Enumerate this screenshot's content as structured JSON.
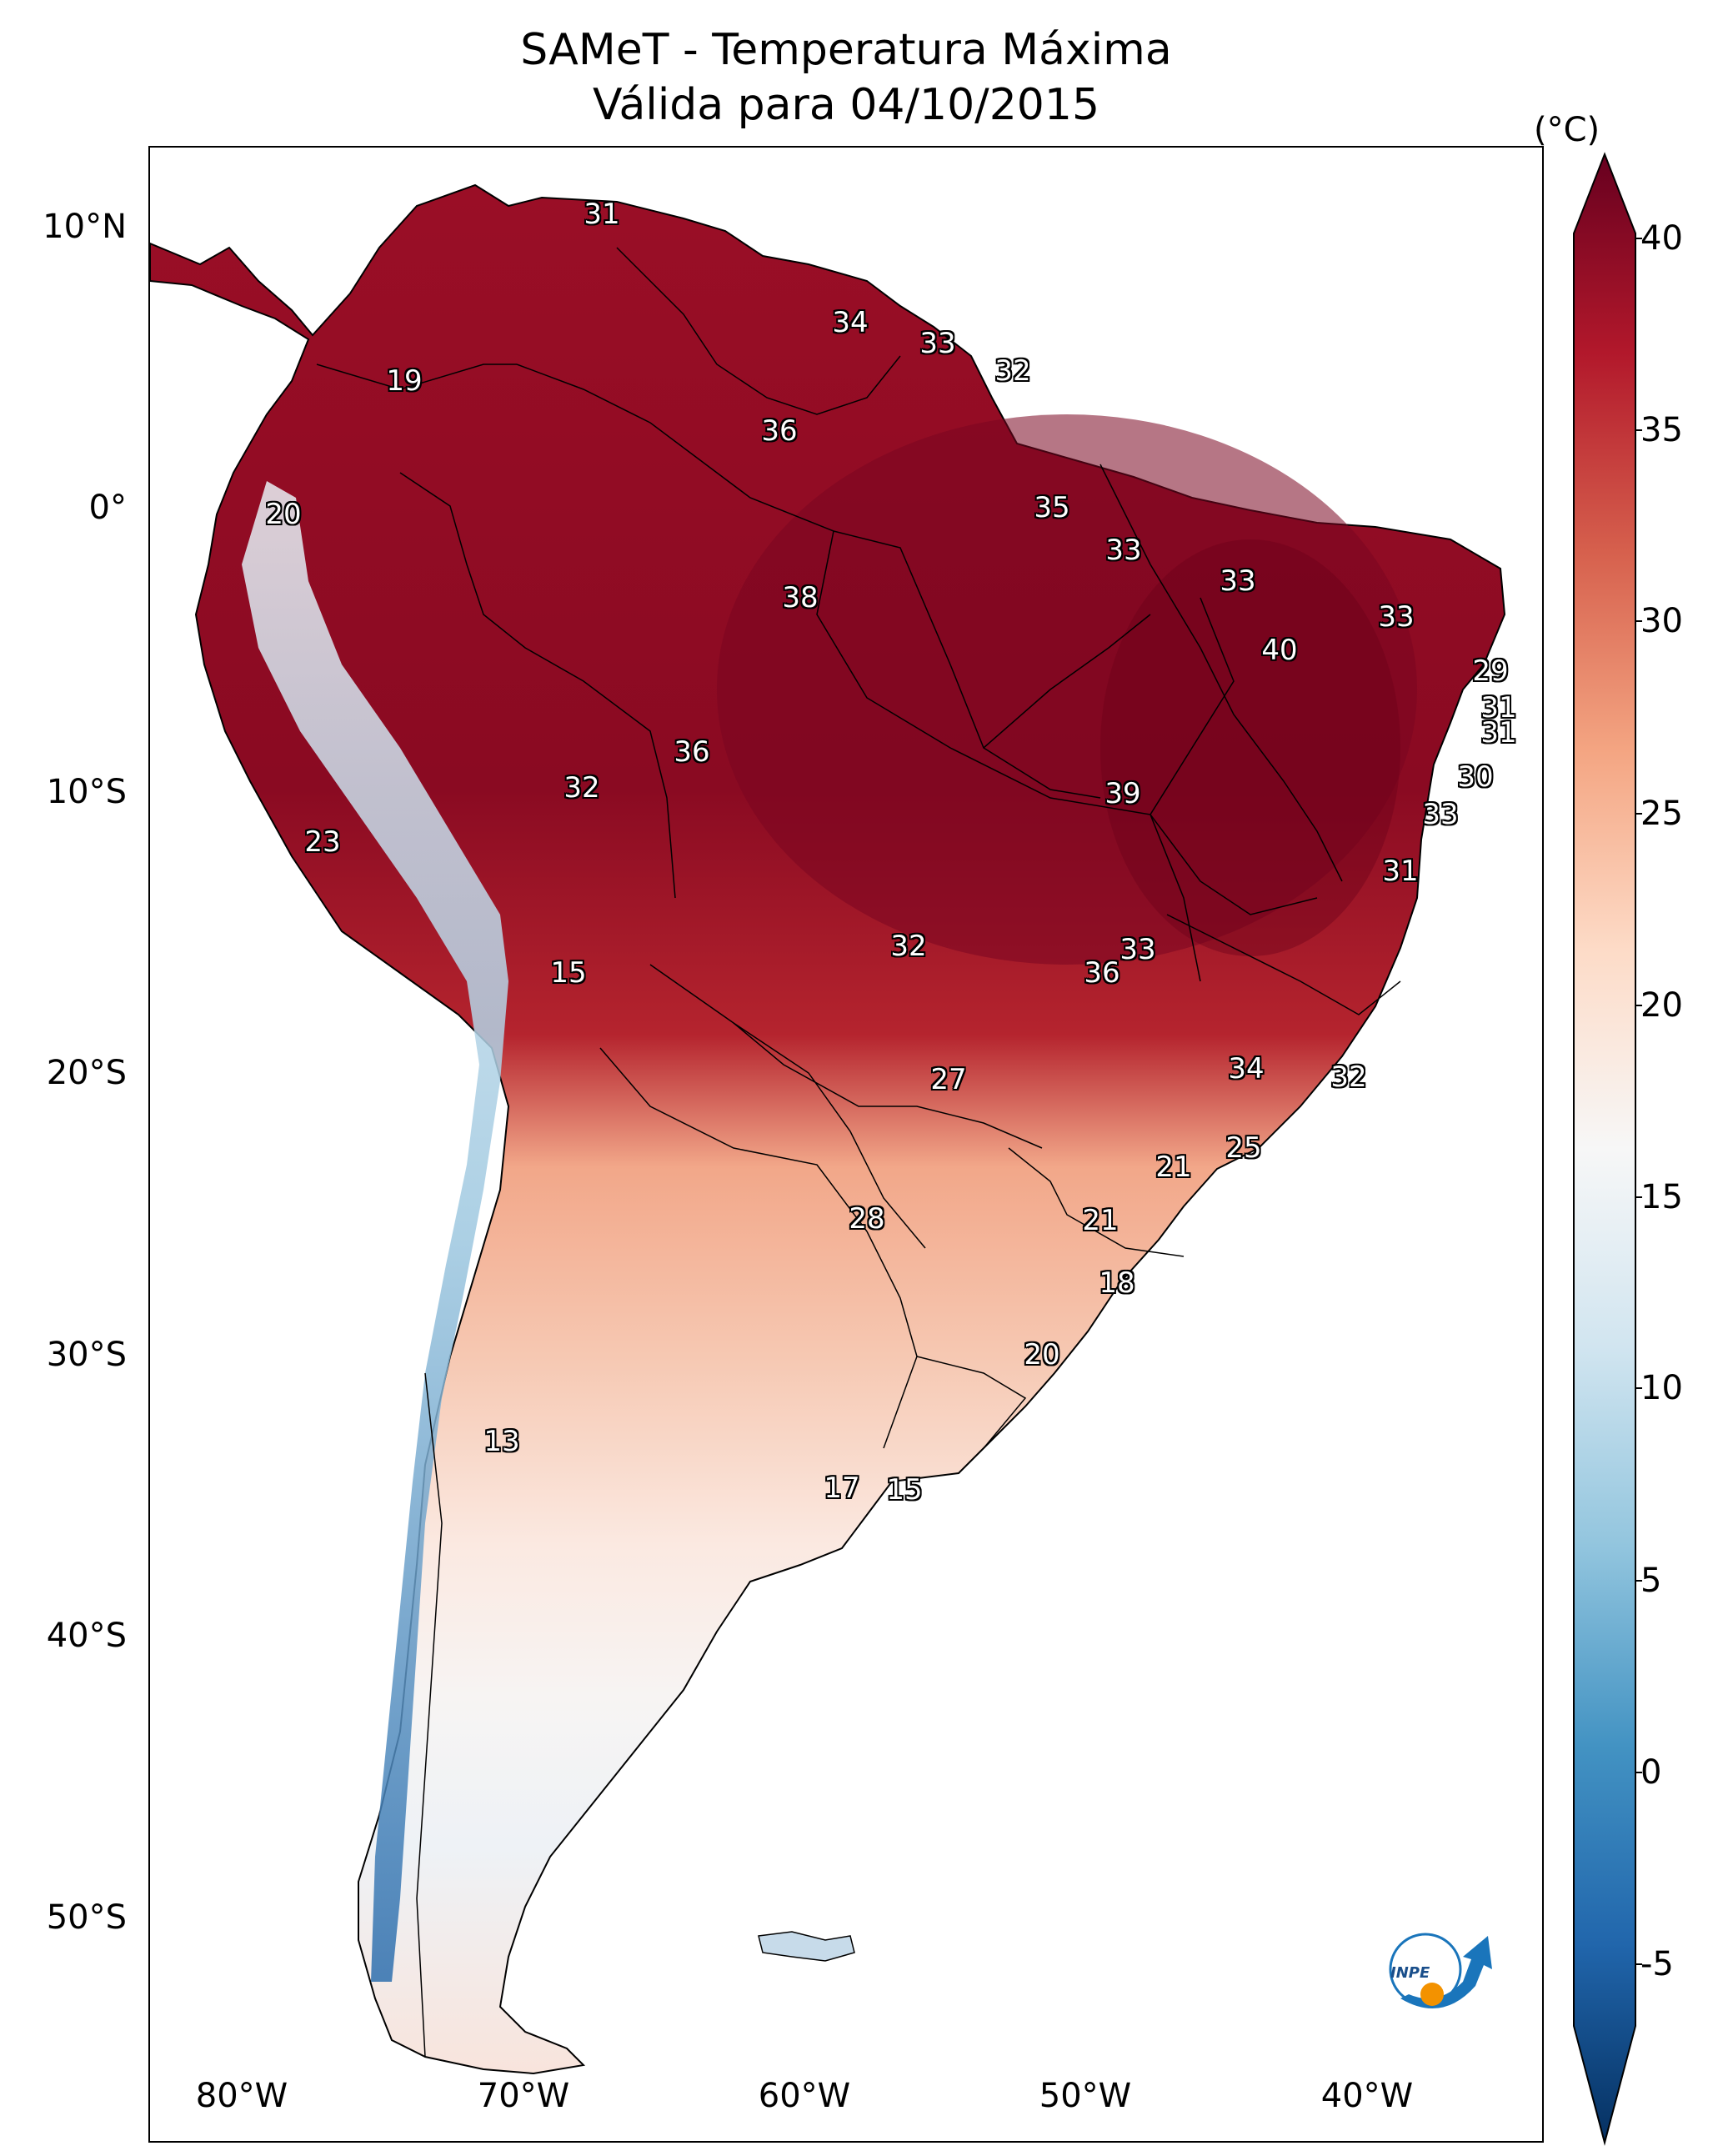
{
  "title": {
    "line1": "SAMeT - Temperatura Máxima",
    "line2": "Válida para 04/10/2015"
  },
  "map": {
    "lat_labels": [
      "10°N",
      "0°",
      "10°S",
      "20°S",
      "30°S",
      "40°S",
      "50°S"
    ],
    "lon_labels": [
      "80°W",
      "70°W",
      "60°W",
      "50°W",
      "40°W"
    ],
    "temperature_labels": [
      {
        "value": "31",
        "region": "north-coast-venezuela"
      },
      {
        "value": "19",
        "region": "colombia-andes"
      },
      {
        "value": "34",
        "region": "guyana"
      },
      {
        "value": "33",
        "region": "suriname"
      },
      {
        "value": "32",
        "region": "french-guiana"
      },
      {
        "value": "36",
        "region": "roraima"
      },
      {
        "value": "20",
        "region": "ecuador"
      },
      {
        "value": "35",
        "region": "amapa"
      },
      {
        "value": "33",
        "region": "para-coast"
      },
      {
        "value": "33",
        "region": "maranhao-coast"
      },
      {
        "value": "38",
        "region": "amazonas"
      },
      {
        "value": "33",
        "region": "ceara-coast"
      },
      {
        "value": "40",
        "region": "piaui"
      },
      {
        "value": "29",
        "region": "rio-grande-do-norte"
      },
      {
        "value": "31",
        "region": "paraiba"
      },
      {
        "value": "31",
        "region": "pernambuco"
      },
      {
        "value": "36",
        "region": "acre-amazonas"
      },
      {
        "value": "32",
        "region": "acre"
      },
      {
        "value": "30",
        "region": "alagoas"
      },
      {
        "value": "39",
        "region": "tocantins"
      },
      {
        "value": "33",
        "region": "sergipe"
      },
      {
        "value": "23",
        "region": "peru-coast"
      },
      {
        "value": "31",
        "region": "bahia-coast"
      },
      {
        "value": "15",
        "region": "bolivia-andes"
      },
      {
        "value": "32",
        "region": "bolivia"
      },
      {
        "value": "33",
        "region": "goias-north"
      },
      {
        "value": "36",
        "region": "goias"
      },
      {
        "value": "34",
        "region": "minas-gerais"
      },
      {
        "value": "32",
        "region": "espirito-santo"
      },
      {
        "value": "27",
        "region": "mato-grosso-do-sul"
      },
      {
        "value": "21",
        "region": "sao-paulo"
      },
      {
        "value": "25",
        "region": "rio-de-janeiro"
      },
      {
        "value": "28",
        "region": "paraguay"
      },
      {
        "value": "21",
        "region": "parana"
      },
      {
        "value": "18",
        "region": "santa-catarina"
      },
      {
        "value": "20",
        "region": "rio-grande-do-sul"
      },
      {
        "value": "13",
        "region": "chile-andes"
      },
      {
        "value": "17",
        "region": "buenos-aires"
      },
      {
        "value": "15",
        "region": "uruguay-coast"
      }
    ]
  },
  "colorbar": {
    "unit": "(°C)",
    "ticks": [
      "40",
      "35",
      "30",
      "25",
      "20",
      "15",
      "10",
      "5",
      "0",
      "-5"
    ],
    "colors": [
      "#053061",
      "#2166ac",
      "#4393c3",
      "#92c5de",
      "#d1e5f0",
      "#f7f7f7",
      "#fddbc7",
      "#f4a582",
      "#d6604d",
      "#b2182b",
      "#67001f"
    ]
  },
  "logo": {
    "text": "INPE",
    "icon": "inpe-logo-icon"
  }
}
